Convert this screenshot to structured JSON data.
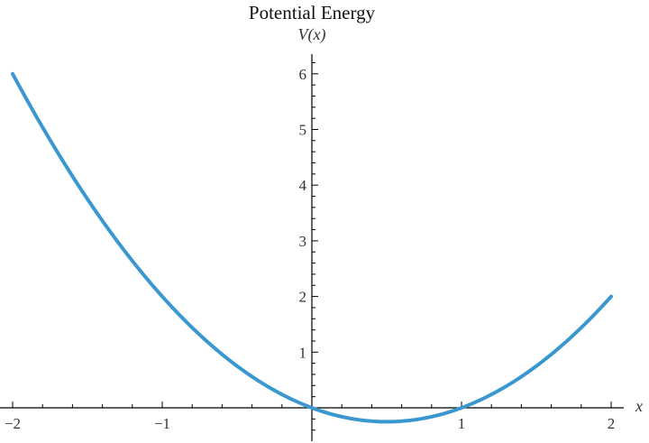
{
  "chart_data": {
    "type": "line",
    "title": "Potential Energy",
    "xlabel": "x",
    "ylabel": "V(x)",
    "function": "V(x) = x^2 - x",
    "xlim": [
      -2.02,
      2.08
    ],
    "ylim": [
      -0.55,
      6.3
    ],
    "x_ticks": [
      -2,
      -1,
      1,
      2
    ],
    "x_tick_labels": [
      "−2",
      "−1",
      "1",
      "2"
    ],
    "y_ticks": [
      1,
      2,
      3,
      4,
      5,
      6
    ],
    "y_tick_labels": [
      "1",
      "2",
      "3",
      "4",
      "5",
      "6"
    ],
    "grid": false,
    "legend": null,
    "series": [
      {
        "name": "V(x)",
        "color": "#3b97cf",
        "x": [
          -2,
          -1.75,
          -1.5,
          -1.25,
          -1,
          -0.75,
          -0.5,
          -0.25,
          0,
          0.25,
          0.5,
          0.75,
          1,
          1.25,
          1.5,
          1.75,
          2
        ],
        "y": [
          6,
          4.8125,
          3.75,
          2.8125,
          2,
          1.3125,
          0.75,
          0.3125,
          0,
          -0.1875,
          -0.25,
          -0.1875,
          0,
          0.3125,
          0.75,
          1.3125,
          2
        ]
      }
    ]
  }
}
